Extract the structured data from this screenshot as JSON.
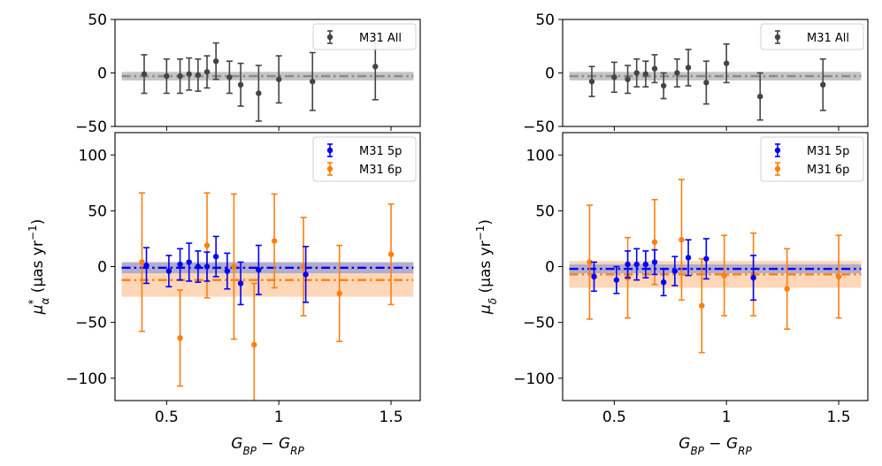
{
  "chart_data": [
    {
      "id": "left-top",
      "type": "scatter",
      "xlim": [
        0.27,
        1.63
      ],
      "ylim": [
        -50,
        50
      ],
      "yticks": [
        50,
        0,
        -50
      ],
      "xticks": [
        0.5,
        1.0,
        1.5
      ],
      "show_x_tick_labels": false,
      "legend": {
        "position": "top-right",
        "entries": [
          "M31 All"
        ]
      },
      "bands": [
        {
          "color": "#bbbbbb",
          "center": -3,
          "half_width": 4,
          "line": "dashdot",
          "line_color": "#8a8a8a"
        }
      ],
      "series": [
        {
          "name": "M31 All",
          "color": "#444444",
          "x": [
            0.4,
            0.5,
            0.56,
            0.6,
            0.64,
            0.68,
            0.72,
            0.78,
            0.83,
            0.91,
            1.0,
            1.15,
            1.43
          ],
          "y": [
            -1,
            -3,
            -3,
            -1,
            -2,
            1,
            11,
            -4,
            -11,
            -19,
            -6,
            -8,
            6
          ],
          "err": [
            18,
            16,
            16,
            15,
            15,
            15,
            17,
            15,
            20,
            26,
            22,
            27,
            31
          ]
        }
      ]
    },
    {
      "id": "right-top",
      "type": "scatter",
      "xlim": [
        0.27,
        1.63
      ],
      "ylim": [
        -50,
        50
      ],
      "yticks": [
        50,
        0,
        -50
      ],
      "xticks": [
        0.5,
        1.0,
        1.5
      ],
      "show_x_tick_labels": false,
      "legend": {
        "position": "top-right",
        "entries": [
          "M31 All"
        ]
      },
      "bands": [
        {
          "color": "#bbbbbb",
          "center": -3,
          "half_width": 4,
          "line": "dashdot",
          "line_color": "#8a8a8a"
        }
      ],
      "series": [
        {
          "name": "M31 All",
          "color": "#444444",
          "x": [
            0.4,
            0.5,
            0.56,
            0.6,
            0.64,
            0.68,
            0.72,
            0.78,
            0.83,
            0.91,
            1.0,
            1.15,
            1.43
          ],
          "y": [
            -8,
            -4,
            -6,
            0,
            -1,
            4,
            -12,
            0,
            5,
            -9,
            9,
            -22,
            -11
          ],
          "err": [
            14,
            14,
            13,
            13,
            12,
            13,
            12,
            13,
            17,
            20,
            18,
            22,
            24
          ]
        }
      ]
    },
    {
      "id": "left-bottom",
      "type": "scatter",
      "xlim": [
        0.27,
        1.63
      ],
      "ylim": [
        -120,
        120
      ],
      "yticks": [
        100,
        50,
        0,
        -50,
        -100
      ],
      "xticks": [
        0.5,
        1.0,
        1.5
      ],
      "xlabel": "G_BP − G_RP",
      "ylabel": "μ*_α (μas yr⁻¹)",
      "legend": {
        "position": "top-right",
        "entries": [
          "M31 5p",
          "M31 6p"
        ]
      },
      "bands": [
        {
          "color": "#fdd0aa",
          "center": -12,
          "half_width": 15,
          "line": "dashdot",
          "line_color": "#ff7f0e"
        },
        {
          "color": "#a6a6cf",
          "center": -1,
          "half_width": 5,
          "line": "dashdot",
          "line_color": "#0000ff"
        }
      ],
      "series": [
        {
          "name": "M31 6p",
          "color": "#ff7f0e",
          "x": [
            0.39,
            0.56,
            0.68,
            0.8,
            0.89,
            0.98,
            1.11,
            1.27,
            1.5
          ],
          "y": [
            4,
            -64,
            19,
            0,
            -70,
            23,
            0,
            -24,
            11
          ],
          "err": [
            62,
            43,
            47,
            65,
            55,
            42,
            44,
            43,
            45
          ]
        },
        {
          "name": "M31 5p",
          "color": "#0000ff",
          "x": [
            0.41,
            0.51,
            0.56,
            0.6,
            0.64,
            0.68,
            0.72,
            0.77,
            0.83,
            0.91,
            1.12
          ],
          "y": [
            1,
            -4,
            2,
            4,
            0,
            0,
            9,
            -4,
            -15,
            -3,
            -7
          ],
          "err": [
            16,
            14,
            14,
            17,
            14,
            13,
            18,
            16,
            19,
            22,
            25
          ]
        }
      ]
    },
    {
      "id": "right-bottom",
      "type": "scatter",
      "xlim": [
        0.27,
        1.63
      ],
      "ylim": [
        -120,
        120
      ],
      "yticks": [
        100,
        50,
        0,
        -50,
        -100
      ],
      "xticks": [
        0.5,
        1.0,
        1.5
      ],
      "xlabel": "G_BP − G_RP",
      "ylabel": "μ_δ (μas yr⁻¹)",
      "legend": {
        "position": "top-right",
        "entries": [
          "M31 5p",
          "M31 6p"
        ]
      },
      "bands": [
        {
          "color": "#fdd0aa",
          "center": -7,
          "half_width": 12,
          "line": "dashdot",
          "line_color": "#ff7f0e"
        },
        {
          "color": "#a6a6cf",
          "center": -2,
          "half_width": 4,
          "line": "dashdot",
          "line_color": "#0000ff"
        }
      ],
      "series": [
        {
          "name": "M31 6p",
          "color": "#ff7f0e",
          "x": [
            0.39,
            0.56,
            0.68,
            0.8,
            0.89,
            0.99,
            1.12,
            1.27,
            1.5
          ],
          "y": [
            4,
            -10,
            22,
            24,
            -35,
            -8,
            -7,
            -20,
            -9
          ],
          "err": [
            51,
            36,
            38,
            54,
            42,
            36,
            37,
            36,
            37
          ]
        },
        {
          "name": "M31 5p",
          "color": "#0000ff",
          "x": [
            0.41,
            0.51,
            0.56,
            0.6,
            0.64,
            0.68,
            0.72,
            0.77,
            0.83,
            0.91,
            1.12
          ],
          "y": [
            -9,
            -12,
            2,
            2,
            2,
            4,
            -14,
            -4,
            8,
            7,
            -10
          ],
          "err": [
            13,
            12,
            12,
            14,
            12,
            11,
            12,
            13,
            16,
            18,
            20
          ]
        }
      ]
    }
  ]
}
